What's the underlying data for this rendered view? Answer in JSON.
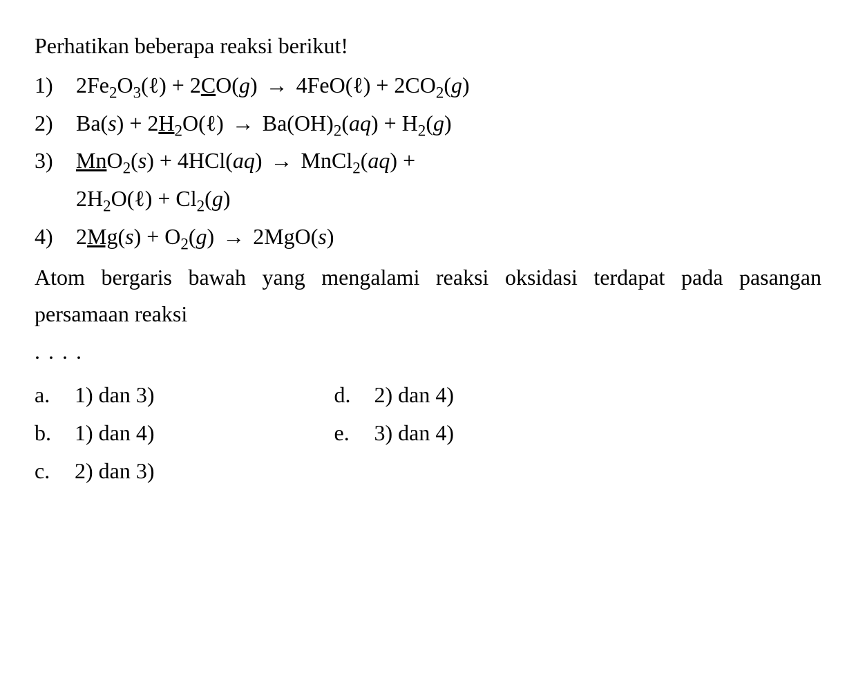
{
  "intro": "Perhatikan beberapa reaksi berikut!",
  "reactions": {
    "r1": {
      "num": "1)",
      "pre": "2Fe",
      "sub1": "2",
      "o": "O",
      "sub2": "3",
      "phase1": "(ℓ) + 2",
      "underlined": "C",
      "after_under": "O(",
      "phase_g": "g",
      "close1": ")",
      "arrow": "→",
      "prod1": " 4FeO(ℓ) + 2CO",
      "sub3": "2",
      "phase2": "(",
      "phase_g2": "g",
      "close2": ")"
    },
    "r2": {
      "num": "2)",
      "pre": "Ba(",
      "phase_s": "s",
      "mid1": ") + 2",
      "underlined": "H",
      "sub1": "2",
      "mid2": "O(ℓ)",
      "arrow": "→",
      "prod1": " Ba(OH)",
      "sub2": "2",
      "phase_aq": "(",
      "aq": "aq",
      "close1": ") + H",
      "sub3": "2",
      "phase_g": "(",
      "g": "g",
      "close2": ")"
    },
    "r3": {
      "num": "3)",
      "underlined": "Mn",
      "after_under": "O",
      "sub1": "2",
      "phase1": "(",
      "s": "s",
      "mid1": ") + 4HCl(",
      "aq": "aq",
      "close1": ")",
      "arrow": "→",
      "prod1": " MnCl",
      "sub2": "2",
      "phase2": "(",
      "aq2": "aq",
      "close2": ") +"
    },
    "r3_cont": {
      "pre": "2H",
      "sub1": "2",
      "mid": "O(ℓ) + Cl",
      "sub2": "2",
      "phase": "(",
      "g": "g",
      "close": ")"
    },
    "r4": {
      "num": "4)",
      "pre": "2",
      "underlined": "Mg",
      "phase1": "(",
      "s": "s",
      "mid1": ") + O",
      "sub1": "2",
      "phase_g": "(",
      "g": "g",
      "close1": ")",
      "arrow": "→",
      "prod": " 2MgO(",
      "s2": "s",
      "close2": ")"
    }
  },
  "question": "Atom bergaris bawah yang mengalami reaksi oksidasi terdapat pada pasangan persamaan reaksi",
  "dots": ". . . .",
  "options": {
    "a": {
      "label": "a.",
      "text": "1) dan 3)"
    },
    "b": {
      "label": "b.",
      "text": "1) dan 4)"
    },
    "c": {
      "label": "c.",
      "text": "2) dan 3)"
    },
    "d": {
      "label": "d.",
      "text": "2) dan 4)"
    },
    "e": {
      "label": "e.",
      "text": "3) dan 4)"
    }
  }
}
